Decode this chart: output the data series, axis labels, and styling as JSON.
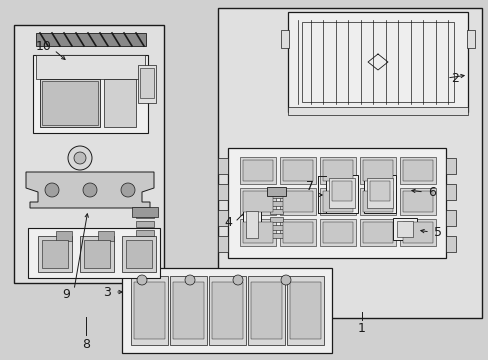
{
  "bg_color": "#d0d0d0",
  "line_color": "#1a1a1a",
  "box_bg": "#e4e4e4",
  "part_bg": "#f2f2f2",
  "figsize": [
    4.89,
    3.6
  ],
  "dpi": 100
}
